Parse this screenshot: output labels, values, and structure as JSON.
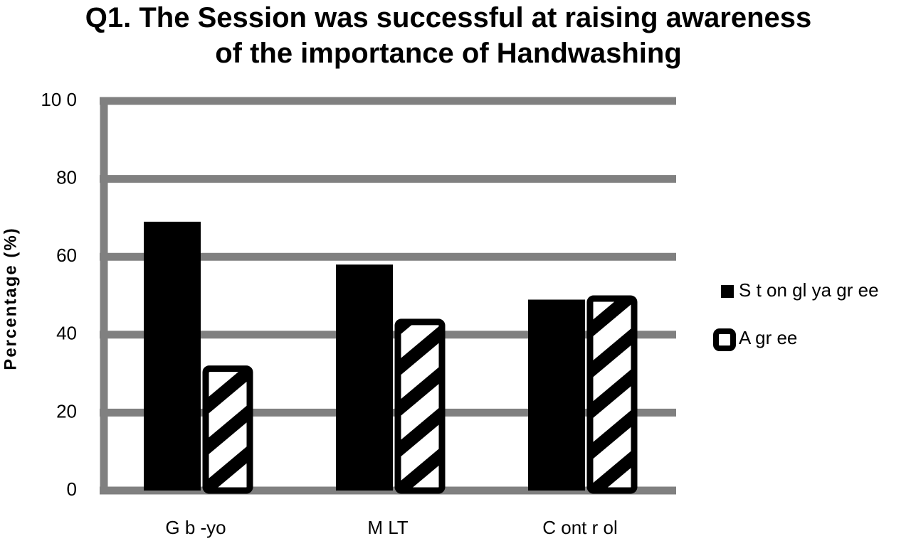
{
  "chart_data": {
    "type": "bar",
    "title": "Q1. The Session was successful at raising awareness of the importance of Handwashing",
    "y_label": "Percentage (%)",
    "categories": [
      "G b -yo",
      "M LT",
      "C ont r ol"
    ],
    "series": [
      {
        "name": "S t on gl ya gr ee",
        "color": "#000000",
        "values": [
          69,
          58,
          49
        ]
      },
      {
        "name": "A gr ee",
        "color": "#000000",
        "pattern": "hatch",
        "values": [
          32,
          44,
          50
        ]
      }
    ],
    "ylim": [
      0,
      100
    ],
    "yticks": [
      0,
      20,
      40,
      60,
      80,
      {
        "value": 100,
        "label": "10 0"
      }
    ],
    "grid": true
  }
}
